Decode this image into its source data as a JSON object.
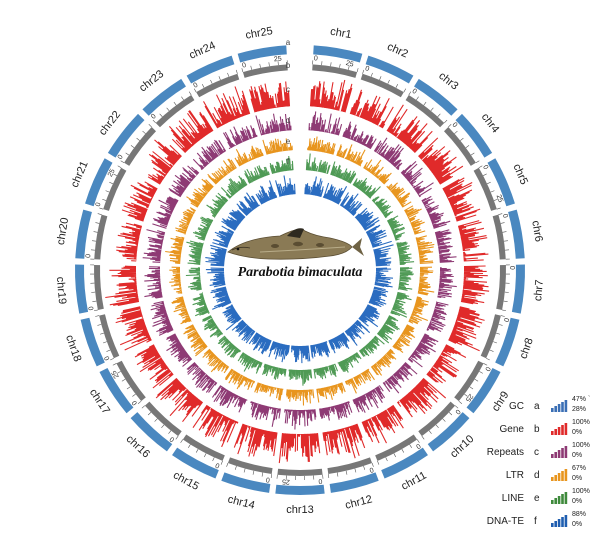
{
  "figure": {
    "species_name": "Parabotia bimaculata",
    "fish_image": "fish-photo"
  },
  "chromosomes": [
    "chr1",
    "chr2",
    "chr3",
    "chr4",
    "chr5",
    "chr6",
    "chr7",
    "chr8",
    "chr9",
    "chr10",
    "chr11",
    "chr12",
    "chr13",
    "chr14",
    "chr15",
    "chr16",
    "chr17",
    "chr18",
    "chr19",
    "chr20",
    "chr21",
    "chr22",
    "chr23",
    "chr24",
    "chr25"
  ],
  "tick_labels": {
    "zero": "0",
    "twenty_five": "25"
  },
  "tracks": [
    {
      "letter": "a",
      "name": "GC",
      "color": "#3b6fb5",
      "max": "47%",
      "min": "28%"
    },
    {
      "letter": "b",
      "name": "Gene",
      "color": "#e02a2a",
      "max": "100%",
      "min": "0%"
    },
    {
      "letter": "c",
      "name": "Repeats",
      "color": "#8e3a74",
      "max": "100%",
      "min": "0%"
    },
    {
      "letter": "d",
      "name": "LTR",
      "color": "#e8951e",
      "max": "67%",
      "min": "0%"
    },
    {
      "letter": "e",
      "name": "LINE",
      "color": "#3f8a3c",
      "max": "100%",
      "min": "0%"
    },
    {
      "letter": "f",
      "name": "DNA-TE",
      "color": "#1f5eb0",
      "max": "88%",
      "min": "0%"
    }
  ],
  "colors": {
    "ideogram": "#4a88c0",
    "scale_ring": "#777777",
    "gene": "#e02a2a",
    "repeats": "#8e3a74",
    "ltr": "#e8951e",
    "line": "#4f9a55",
    "dna_te": "#2a6cc0"
  },
  "legend_extra_mark": "`"
}
